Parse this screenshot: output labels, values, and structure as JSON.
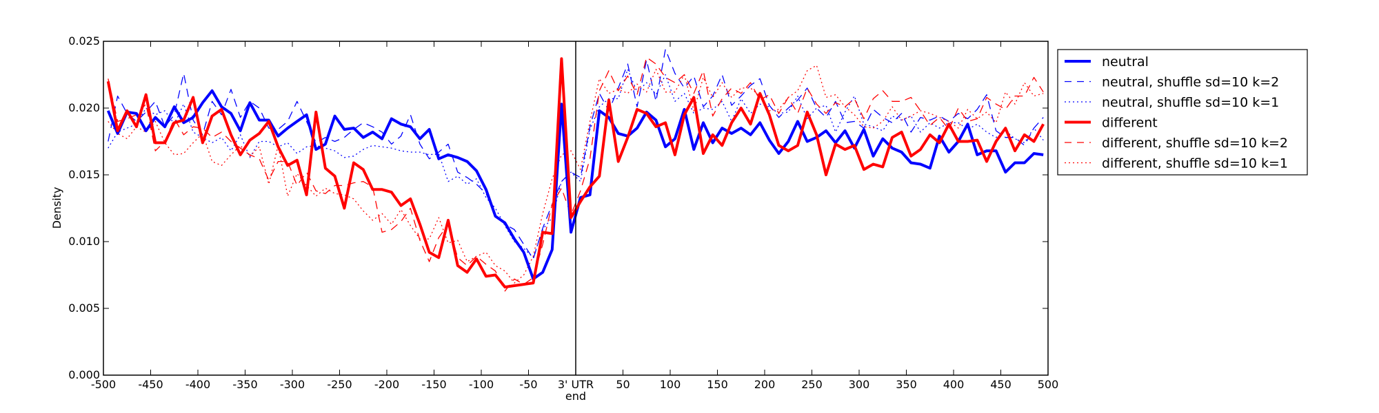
{
  "chart_data": {
    "type": "line",
    "xlabel": "",
    "ylabel": "Density",
    "xlim": [
      -500,
      500
    ],
    "ylim": [
      0,
      0.025
    ],
    "x_tick_labels": [
      "-500",
      "-450",
      "-400",
      "-350",
      "-300",
      "-250",
      "-200",
      "-150",
      "-100",
      "-50",
      "3' UTR\nend",
      "50",
      "100",
      "150",
      "200",
      "250",
      "300",
      "350",
      "400",
      "450",
      "500"
    ],
    "y_tick_labels": [
      "0.000",
      "0.005",
      "0.010",
      "0.015",
      "0.020",
      "0.025"
    ],
    "y_ticks": [
      0,
      0.005,
      0.01,
      0.015,
      0.02,
      0.025
    ],
    "x_ticks": [
      -500,
      -450,
      -400,
      -350,
      -300,
      -250,
      -200,
      -150,
      -100,
      -50,
      0,
      50,
      100,
      150,
      200,
      250,
      300,
      350,
      400,
      450,
      500
    ],
    "vertical_line_x": 0,
    "grid": false,
    "legend_position": "outside-right",
    "x": [
      -495,
      -485,
      -475,
      -465,
      -455,
      -445,
      -435,
      -425,
      -415,
      -405,
      -395,
      -385,
      -375,
      -365,
      -355,
      -345,
      -335,
      -325,
      -315,
      -305,
      -295,
      -285,
      -275,
      -265,
      -255,
      -245,
      -235,
      -225,
      -215,
      -205,
      -195,
      -185,
      -175,
      -165,
      -155,
      -145,
      -135,
      -125,
      -115,
      -105,
      -95,
      -85,
      -75,
      -65,
      -55,
      -45,
      -35,
      -25,
      -15,
      -5,
      5,
      15,
      25,
      35,
      45,
      55,
      65,
      75,
      85,
      95,
      105,
      115,
      125,
      135,
      145,
      155,
      165,
      175,
      185,
      195,
      205,
      215,
      225,
      235,
      245,
      255,
      265,
      275,
      285,
      295,
      305,
      315,
      325,
      335,
      345,
      355,
      365,
      375,
      385,
      395,
      405,
      415,
      425,
      435,
      445,
      455,
      465,
      475,
      485,
      495
    ],
    "series": [
      {
        "name": "neutral",
        "color": "#0000ff",
        "style": "solid",
        "width": 4,
        "values": [
          0.0198,
          0.0181,
          0.0197,
          0.0196,
          0.0183,
          0.0193,
          0.0186,
          0.0201,
          0.0189,
          0.0193,
          0.0204,
          0.0213,
          0.0201,
          0.0196,
          0.0183,
          0.0204,
          0.0191,
          0.0191,
          0.0179,
          0.0185,
          0.019,
          0.0195,
          0.0169,
          0.0173,
          0.0194,
          0.0184,
          0.0185,
          0.0178,
          0.0182,
          0.0177,
          0.0192,
          0.0188,
          0.0186,
          0.0177,
          0.0184,
          0.0162,
          0.0165,
          0.0163,
          0.016,
          0.0153,
          0.0139,
          0.0119,
          0.0114,
          0.0102,
          0.0092,
          0.0072,
          0.0077,
          0.0094,
          0.0203,
          0.0107,
          0.0133,
          0.0135,
          0.0198,
          0.0193,
          0.0181,
          0.0179,
          0.0185,
          0.0197,
          0.0191,
          0.0171,
          0.0177,
          0.0199,
          0.0169,
          0.0189,
          0.0174,
          0.0185,
          0.0181,
          0.0185,
          0.018,
          0.0189,
          0.0176,
          0.0166,
          0.0175,
          0.019,
          0.0175,
          0.0178,
          0.0183,
          0.0174,
          0.0183,
          0.017,
          0.0184,
          0.0164,
          0.0177,
          0.017,
          0.0167,
          0.0159,
          0.0158,
          0.0155,
          0.0179,
          0.0167,
          0.0175,
          0.0188,
          0.0165,
          0.0168,
          0.0168,
          0.0152,
          0.0159,
          0.0159,
          0.0166,
          0.0165
        ]
      },
      {
        "name": "neutral, shuffle sd=10 k=2",
        "color": "#0000ff",
        "style": "dashed",
        "width": 1.3,
        "values": [
          0.0175,
          0.0209,
          0.0196,
          0.019,
          0.0197,
          0.0205,
          0.0186,
          0.0195,
          0.0226,
          0.0191,
          0.018,
          0.0205,
          0.0195,
          0.0214,
          0.0193,
          0.0205,
          0.02,
          0.0185,
          0.0184,
          0.019,
          0.0205,
          0.019,
          0.0174,
          0.0178,
          0.0175,
          0.0178,
          0.0184,
          0.0189,
          0.0186,
          0.0182,
          0.0173,
          0.0179,
          0.0195,
          0.0173,
          0.0162,
          0.0167,
          0.0173,
          0.0152,
          0.0148,
          0.0143,
          0.0136,
          0.0121,
          0.0113,
          0.0109,
          0.0098,
          0.0087,
          0.011,
          0.0128,
          0.0145,
          0.0152,
          0.0148,
          0.0186,
          0.0211,
          0.0198,
          0.0215,
          0.0233,
          0.0201,
          0.0236,
          0.0205,
          0.0244,
          0.0226,
          0.0215,
          0.0224,
          0.0201,
          0.0209,
          0.0225,
          0.0202,
          0.0209,
          0.0217,
          0.0222,
          0.0202,
          0.0193,
          0.02,
          0.0206,
          0.0215,
          0.02,
          0.0193,
          0.0205,
          0.0189,
          0.019,
          0.0185,
          0.0199,
          0.0193,
          0.0189,
          0.0196,
          0.0182,
          0.0193,
          0.0191,
          0.0194,
          0.019,
          0.0196,
          0.0192,
          0.0199,
          0.021,
          0.0183,
          0.0178,
          0.0178,
          0.0172,
          0.0185,
          0.0193
        ]
      },
      {
        "name": "neutral, shuffle sd=10 k=1",
        "color": "#0000ff",
        "style": "dotted",
        "width": 1.3,
        "values": [
          0.017,
          0.0182,
          0.0185,
          0.0188,
          0.02,
          0.0195,
          0.0198,
          0.0188,
          0.0203,
          0.0182,
          0.0178,
          0.0174,
          0.0178,
          0.0168,
          0.018,
          0.0163,
          0.0175,
          0.0175,
          0.0171,
          0.0174,
          0.0166,
          0.0171,
          0.0172,
          0.017,
          0.0168,
          0.0163,
          0.0164,
          0.0169,
          0.0172,
          0.0171,
          0.017,
          0.0168,
          0.0167,
          0.0167,
          0.0165,
          0.0166,
          0.0145,
          0.0149,
          0.0143,
          0.0147,
          0.0133,
          0.0125,
          0.0112,
          0.01,
          0.0095,
          0.0088,
          0.0109,
          0.0118,
          0.0145,
          0.0152,
          0.0145,
          0.0184,
          0.0201,
          0.0207,
          0.0207,
          0.0229,
          0.0212,
          0.0219,
          0.021,
          0.0225,
          0.0205,
          0.0211,
          0.0196,
          0.02,
          0.0199,
          0.0205,
          0.019,
          0.0207,
          0.0196,
          0.0203,
          0.0201,
          0.0196,
          0.0197,
          0.0209,
          0.0192,
          0.02,
          0.0202,
          0.0182,
          0.0197,
          0.0209,
          0.0188,
          0.0186,
          0.0183,
          0.0194,
          0.0191,
          0.0194,
          0.0182,
          0.0189,
          0.0185,
          0.0189,
          0.0189,
          0.0184,
          0.0188,
          0.0182,
          0.0178,
          0.0183,
          0.0177,
          0.0174,
          0.0185,
          0.0176
        ]
      },
      {
        "name": "different",
        "color": "#ff0000",
        "style": "solid",
        "width": 4,
        "values": [
          0.022,
          0.0183,
          0.0198,
          0.0186,
          0.021,
          0.0174,
          0.0174,
          0.0189,
          0.0191,
          0.0208,
          0.0174,
          0.0194,
          0.0199,
          0.018,
          0.0165,
          0.0176,
          0.0181,
          0.019,
          0.0171,
          0.0157,
          0.0161,
          0.0135,
          0.0197,
          0.0155,
          0.0149,
          0.0125,
          0.0159,
          0.0154,
          0.0139,
          0.0139,
          0.0137,
          0.0127,
          0.0132,
          0.0113,
          0.0092,
          0.0088,
          0.0116,
          0.0082,
          0.0077,
          0.0087,
          0.0074,
          0.0075,
          0.0066,
          0.0067,
          0.0068,
          0.0069,
          0.0107,
          0.0106,
          0.0237,
          0.0118,
          0.013,
          0.0141,
          0.0149,
          0.0206,
          0.016,
          0.0178,
          0.0199,
          0.0196,
          0.0186,
          0.0189,
          0.0165,
          0.0195,
          0.0208,
          0.0166,
          0.018,
          0.0172,
          0.0189,
          0.02,
          0.0188,
          0.0211,
          0.0195,
          0.0172,
          0.0168,
          0.0172,
          0.0197,
          0.018,
          0.015,
          0.0173,
          0.0169,
          0.0172,
          0.0154,
          0.0158,
          0.0156,
          0.0178,
          0.0182,
          0.0164,
          0.0169,
          0.018,
          0.0174,
          0.0188,
          0.0175,
          0.0175,
          0.0176,
          0.016,
          0.0175,
          0.0185,
          0.0168,
          0.018,
          0.0175,
          0.0188
        ]
      },
      {
        "name": "different, shuffle sd=10 k=2",
        "color": "#ff0000",
        "style": "dashed",
        "width": 1.3,
        "values": [
          0.0222,
          0.019,
          0.0192,
          0.0195,
          0.0203,
          0.0168,
          0.0175,
          0.0192,
          0.018,
          0.0186,
          0.0185,
          0.0178,
          0.0182,
          0.0175,
          0.017,
          0.0165,
          0.0162,
          0.0146,
          0.016,
          0.016,
          0.0142,
          0.0152,
          0.0138,
          0.0136,
          0.0142,
          0.0142,
          0.0144,
          0.0145,
          0.0141,
          0.0107,
          0.0109,
          0.0115,
          0.0125,
          0.0101,
          0.0085,
          0.0103,
          0.0113,
          0.0088,
          0.0082,
          0.0089,
          0.0083,
          0.0078,
          0.0063,
          0.0072,
          0.0068,
          0.0073,
          0.0098,
          0.0128,
          0.014,
          0.012,
          0.0138,
          0.0162,
          0.0213,
          0.0228,
          0.0213,
          0.0224,
          0.021,
          0.0238,
          0.0233,
          0.0223,
          0.0219,
          0.0225,
          0.0211,
          0.0228,
          0.0194,
          0.0207,
          0.0215,
          0.0211,
          0.0219,
          0.0206,
          0.021,
          0.0196,
          0.0208,
          0.0196,
          0.0215,
          0.0203,
          0.0196,
          0.0204,
          0.0201,
          0.0207,
          0.0192,
          0.0207,
          0.0213,
          0.0205,
          0.0205,
          0.0208,
          0.0198,
          0.0187,
          0.0193,
          0.0184,
          0.02,
          0.019,
          0.0192,
          0.0208,
          0.0203,
          0.0199,
          0.0209,
          0.0209,
          0.0223,
          0.0212
        ]
      },
      {
        "name": "different, shuffle sd=10 k=1",
        "color": "#ff0000",
        "style": "dotted",
        "width": 1.3,
        "values": [
          0.019,
          0.0181,
          0.0177,
          0.0186,
          0.0182,
          0.019,
          0.0174,
          0.0165,
          0.0166,
          0.0174,
          0.0181,
          0.016,
          0.0157,
          0.0165,
          0.0172,
          0.0164,
          0.0171,
          0.0143,
          0.0172,
          0.0134,
          0.0151,
          0.0142,
          0.0134,
          0.014,
          0.0136,
          0.0135,
          0.0132,
          0.0123,
          0.0116,
          0.0121,
          0.0113,
          0.0124,
          0.0112,
          0.0102,
          0.0102,
          0.0118,
          0.0099,
          0.0101,
          0.0085,
          0.0089,
          0.0092,
          0.0082,
          0.0078,
          0.0069,
          0.0075,
          0.0089,
          0.0121,
          0.0147,
          0.0165,
          0.0168,
          0.0154,
          0.019,
          0.0222,
          0.0211,
          0.0214,
          0.0211,
          0.0218,
          0.0212,
          0.0229,
          0.0212,
          0.0212,
          0.0225,
          0.0198,
          0.0223,
          0.0208,
          0.0219,
          0.0208,
          0.0215,
          0.0215,
          0.0209,
          0.0198,
          0.0199,
          0.0208,
          0.0213,
          0.0228,
          0.0232,
          0.0208,
          0.021,
          0.0201,
          0.0195,
          0.0186,
          0.0185,
          0.019,
          0.0201,
          0.0191,
          0.0194,
          0.0198,
          0.0196,
          0.0193,
          0.019,
          0.0185,
          0.0199,
          0.0192,
          0.0197,
          0.0189,
          0.0212,
          0.0203,
          0.0219,
          0.0209,
          0.0211
        ]
      }
    ]
  }
}
